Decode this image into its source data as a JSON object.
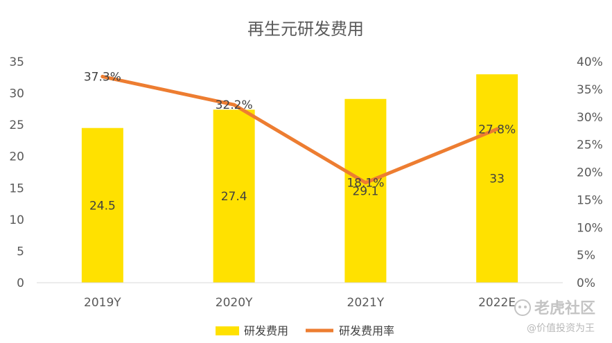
{
  "chart_data": {
    "type": "bar+line",
    "title": "再生元研发费用",
    "categories": [
      "2019Y",
      "2020Y",
      "2021Y",
      "2022E"
    ],
    "series": [
      {
        "name": "研发费用",
        "type": "bar",
        "axis": "left",
        "color": "#FFE100",
        "values": [
          24.5,
          27.4,
          29.1,
          33
        ],
        "labels": [
          "24.5",
          "27.4",
          "29.1",
          "33"
        ]
      },
      {
        "name": "研发费用率",
        "type": "line",
        "axis": "right",
        "color": "#ED7D31",
        "values": [
          37.3,
          32.2,
          18.1,
          27.8
        ],
        "labels": [
          "37.3%",
          "32.2%",
          "18.1%",
          "27.8%"
        ]
      }
    ],
    "y_left": {
      "ylim": [
        0,
        35
      ],
      "ticks": [
        "0",
        "5",
        "10",
        "15",
        "20",
        "25",
        "30",
        "35"
      ]
    },
    "y_right": {
      "ylim": [
        0,
        40
      ],
      "ticks": [
        "0%",
        "5%",
        "10%",
        "15%",
        "20%",
        "25%",
        "30%",
        "35%",
        "40%"
      ]
    },
    "grid": false,
    "legend_position": "bottom"
  },
  "watermark": {
    "brand": "老虎社区",
    "author": "@价值投资为王",
    "icon": "tiger-logo-icon"
  }
}
